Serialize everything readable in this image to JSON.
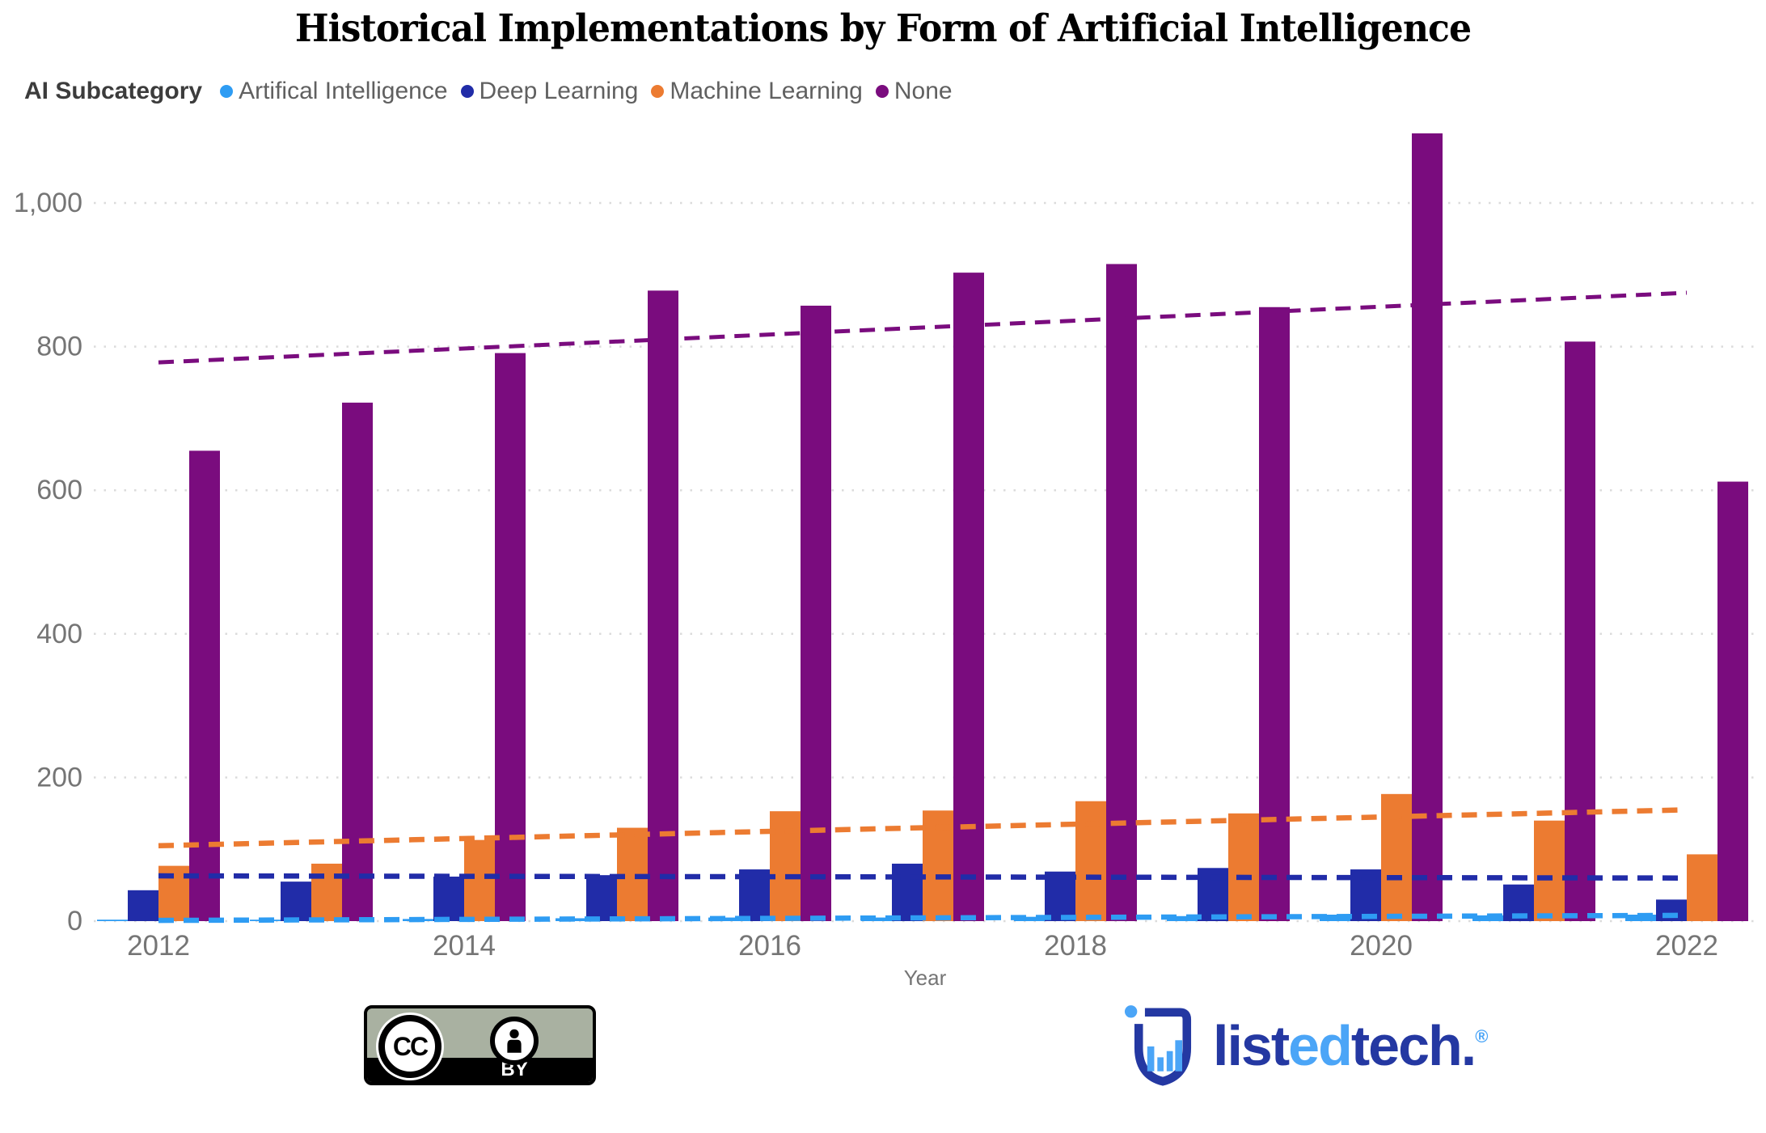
{
  "title": "Historical Implementations by Form of Artificial Intelligence",
  "legend": {
    "label": "AI Subcategory",
    "position": "top-left"
  },
  "chart_data": {
    "type": "bar",
    "categories": [
      "2012",
      "2013",
      "2014",
      "2015",
      "2016",
      "2017",
      "2018",
      "2019",
      "2020",
      "2021",
      "2022"
    ],
    "series": [
      {
        "name": "Artifical Intelligence",
        "color": "#2e9cf3",
        "values": [
          2,
          2,
          3,
          4,
          5,
          5,
          6,
          7,
          9,
          8,
          9
        ],
        "trend": {
          "start": 1,
          "end": 8
        }
      },
      {
        "name": "Deep Learning",
        "color": "#212ca8",
        "values": [
          43,
          55,
          62,
          64,
          72,
          80,
          69,
          74,
          72,
          51,
          30
        ],
        "trend": {
          "start": 63,
          "end": 60
        }
      },
      {
        "name": "Machine Learning",
        "color": "#ec7b31",
        "values": [
          77,
          80,
          113,
          130,
          153,
          154,
          167,
          150,
          177,
          140,
          93
        ],
        "trend": {
          "start": 105,
          "end": 155
        }
      },
      {
        "name": "None",
        "color": "#7a0c7e",
        "values": [
          655,
          722,
          791,
          878,
          857,
          903,
          915,
          855,
          1097,
          807,
          612
        ],
        "trend": {
          "start": 778,
          "end": 875
        }
      }
    ],
    "title": "Historical Implementations by Form of Artificial Intelligence",
    "xlabel": "Year",
    "ylabel": "",
    "ylim": [
      0,
      1125
    ],
    "yticks": [
      0,
      200,
      400,
      600,
      800,
      1000
    ],
    "xticks": [
      "2012",
      "2014",
      "2016",
      "2018",
      "2020",
      "2022"
    ],
    "grid": "horizontal-dotted",
    "trendlines": "dashed, one per series, colored as series",
    "legend_position": "top-left"
  },
  "axis_style": {
    "tick_color": "#757575"
  },
  "footer": {
    "cc_badge": {
      "cc_text": "CC",
      "by_text": "BY"
    },
    "logo": {
      "parts": [
        {
          "text": "list",
          "tone": "dark"
        },
        {
          "text": "ed",
          "tone": "light"
        },
        {
          "text": "tech",
          "tone": "dark"
        },
        {
          "text": ".",
          "tone": "dark"
        },
        {
          "text": "®",
          "tone": "light",
          "small": true
        }
      ],
      "dark_color": "#2438a2",
      "light_color": "#4ba5f7"
    }
  }
}
